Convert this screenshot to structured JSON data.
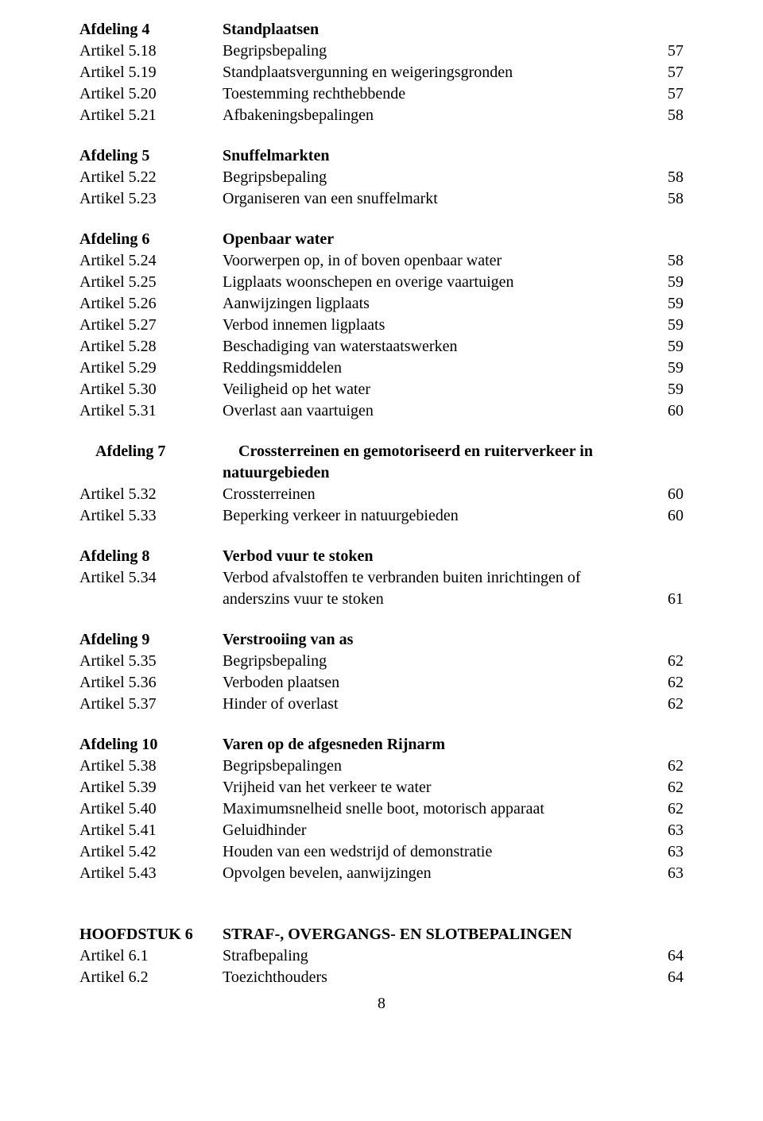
{
  "afd4": {
    "heading_left": "Afdeling 4",
    "heading_right": "Standplaatsen",
    "rows": [
      {
        "l": "Artikel 5.18",
        "m": "Begripsbepaling",
        "p": "57"
      },
      {
        "l": "Artikel 5.19",
        "m": "Standplaatsvergunning en weigeringsgronden",
        "p": "57"
      },
      {
        "l": "Artikel 5.20",
        "m": "Toestemming rechthebbende",
        "p": "57"
      },
      {
        "l": "Artikel 5.21",
        "m": "Afbakeningsbepalingen",
        "p": "58"
      }
    ]
  },
  "afd5": {
    "heading_left": "Afdeling 5",
    "heading_right": "Snuffelmarkten",
    "rows": [
      {
        "l": "Artikel 5.22",
        "m": "Begripsbepaling",
        "p": "58"
      },
      {
        "l": "Artikel 5.23",
        "m": "Organiseren van een snuffelmarkt",
        "p": "58"
      }
    ]
  },
  "afd6": {
    "heading_left": "Afdeling 6",
    "heading_right": "Openbaar water",
    "rows": [
      {
        "l": "Artikel 5.24",
        "m": "Voorwerpen op, in of boven openbaar water",
        "p": "58"
      },
      {
        "l": "Artikel 5.25",
        "m": "Ligplaats woonschepen en overige vaartuigen",
        "p": "59"
      },
      {
        "l": "Artikel 5.26",
        "m": "Aanwijzingen ligplaats",
        "p": "59"
      },
      {
        "l": "Artikel 5.27",
        "m": "Verbod innemen ligplaats",
        "p": "59"
      },
      {
        "l": "Artikel 5.28",
        "m": "Beschadiging van waterstaatswerken",
        "p": "59"
      },
      {
        "l": "Artikel 5.29",
        "m": "Reddingsmiddelen",
        "p": "59"
      },
      {
        "l": "Artikel 5.30",
        "m": "Veiligheid op het water",
        "p": "59"
      },
      {
        "l": "Artikel 5.31",
        "m": "Overlast aan vaartuigen",
        "p": "60"
      }
    ]
  },
  "afd7": {
    "heading_left": "Afdeling 7",
    "heading_right_a": "Crossterreinen en gemotoriseerd en ruiterverkeer in",
    "heading_right_b": "natuurgebieden",
    "rows": [
      {
        "l": "Artikel 5.32",
        "m": "Crossterreinen",
        "p": "60"
      },
      {
        "l": "Artikel 5.33",
        "m": "Beperking verkeer in natuurgebieden",
        "p": "60"
      }
    ]
  },
  "afd8": {
    "heading_left": "Afdeling 8",
    "heading_right": "Verbod vuur te stoken",
    "row1_l": "Artikel 5.34",
    "row1_m_a": "Verbod afvalstoffen te verbranden buiten inrichtingen of",
    "row1_m_b": "anderszins vuur te stoken",
    "row1_p": "61"
  },
  "afd9": {
    "heading_left": "Afdeling 9",
    "heading_right": "Verstrooiing van as",
    "rows": [
      {
        "l": "Artikel 5.35",
        "m": "Begripsbepaling",
        "p": "62"
      },
      {
        "l": "Artikel 5.36",
        "m": "Verboden plaatsen",
        "p": "62"
      },
      {
        "l": "Artikel 5.37",
        "m": "Hinder of overlast",
        "p": "62"
      }
    ]
  },
  "afd10": {
    "heading_left": "Afdeling 10",
    "heading_right": "Varen op de afgesneden Rijnarm",
    "rows": [
      {
        "l": "Artikel 5.38",
        "m": "Begripsbepalingen",
        "p": "62"
      },
      {
        "l": "Artikel 5.39",
        "m": "Vrijheid van het verkeer te water",
        "p": "62"
      },
      {
        "l": "Artikel 5.40",
        "m": "Maximumsnelheid snelle boot, motorisch apparaat",
        "p": "62"
      },
      {
        "l": "Artikel 5.41",
        "m": "Geluidhinder",
        "p": "63"
      },
      {
        "l": "Artikel 5.42",
        "m": "Houden van een wedstrijd of demonstratie",
        "p": "63"
      },
      {
        "l": "Artikel 5.43",
        "m": "Opvolgen bevelen, aanwijzingen",
        "p": "63"
      }
    ]
  },
  "h6": {
    "heading_left": "HOOFDSTUK 6",
    "heading_right": "STRAF-, OVERGANGS- EN SLOTBEPALINGEN",
    "rows": [
      {
        "l": "Artikel 6.1",
        "m": "Strafbepaling",
        "p": "64"
      },
      {
        "l": "Artikel 6.2",
        "m": "Toezichthouders",
        "p": "64"
      }
    ]
  },
  "page_number": "8"
}
